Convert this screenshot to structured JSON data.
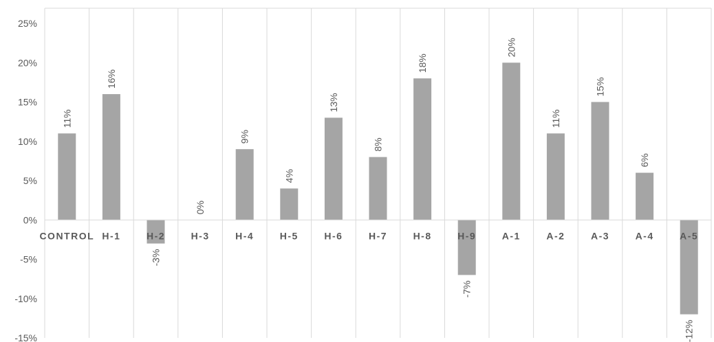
{
  "chart_data": {
    "type": "bar",
    "categories": [
      "CONTROL",
      "H-1",
      "H-2",
      "H-3",
      "H-4",
      "H-5",
      "H-6",
      "H-7",
      "H-8",
      "H-9",
      "A-1",
      "A-2",
      "A-3",
      "A-4",
      "A-5"
    ],
    "values": [
      11,
      16,
      -3,
      0,
      9,
      4,
      13,
      8,
      18,
      -7,
      20,
      11,
      15,
      6,
      -12
    ],
    "data_labels": [
      "11%",
      "16%",
      "-3%",
      "0%",
      "9%",
      "4%",
      "13%",
      "8%",
      "18%",
      "-7%",
      "20%",
      "11%",
      "15%",
      "6%",
      "-12%"
    ],
    "y_ticks": [
      25,
      20,
      15,
      10,
      5,
      0,
      -5,
      -10,
      -15
    ],
    "y_tick_labels": [
      "25%",
      "20%",
      "15%",
      "10%",
      "5%",
      "0%",
      "-5%",
      "-10%",
      "-15%"
    ],
    "ylim": [
      -15,
      25
    ],
    "title": "",
    "xlabel": "",
    "ylabel": "",
    "grid": "vertical",
    "legend": "none",
    "bar_color": "#a5a5a5",
    "grid_color": "#d9d9d9",
    "text_color": "#595959"
  }
}
